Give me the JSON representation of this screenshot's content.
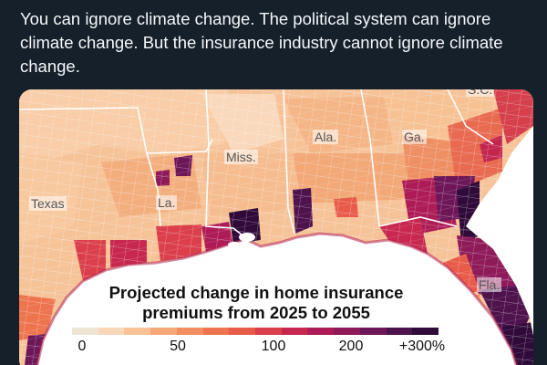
{
  "tweet": {
    "line1": "You can ignore climate change. The political system can ignore",
    "line2": "climate change. But the insurance industry cannot ignore climate",
    "line3": "change."
  },
  "map": {
    "title_line1": "Projected change in home insurance",
    "title_line2": "premiums from 2025 to 2055",
    "states": {
      "sc": "S.C.",
      "ala": "Ala.",
      "ga": "Ga.",
      "miss": "Miss.",
      "texas": "Texas",
      "la": "La.",
      "fla": "Fla."
    },
    "legend": {
      "ticks": [
        "0",
        "50",
        "100",
        "200",
        "+300%"
      ],
      "colors": [
        "#efe4d4",
        "#f8d6b8",
        "#f8c296",
        "#f6a77a",
        "#f28e5f",
        "#ee744f",
        "#e85a4a",
        "#db3f4b",
        "#c8284f",
        "#ad1c56",
        "#8e1a5a",
        "#6d1759",
        "#4e124d",
        "#300b3a"
      ]
    },
    "colors": {
      "water": "#ffffff",
      "land_base": "#f6c399",
      "gulf_shore": "#b3224f"
    }
  }
}
